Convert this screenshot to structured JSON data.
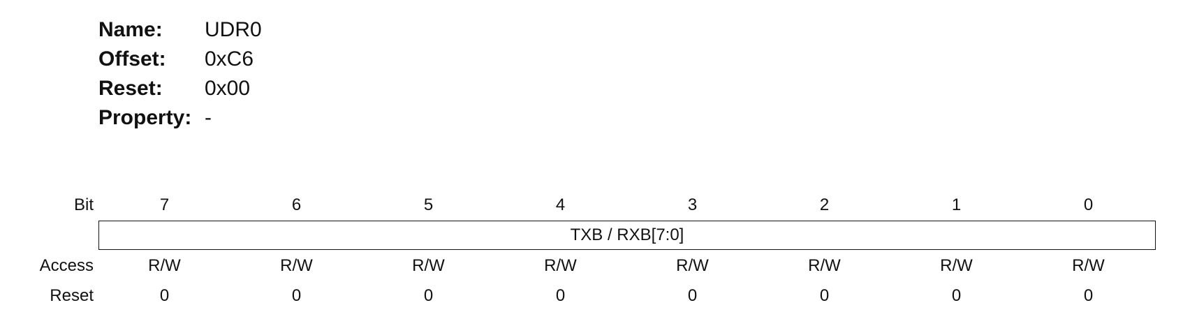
{
  "register": {
    "fields": [
      {
        "label": "Name:",
        "value": "UDR0"
      },
      {
        "label": "Offset:",
        "value": "0xC6"
      },
      {
        "label": "Reset:",
        "value": "0x00"
      },
      {
        "label": "Property:",
        "value": "-"
      }
    ]
  },
  "table": {
    "row_labels": {
      "bit": "Bit",
      "access": "Access",
      "reset": "Reset"
    },
    "bits": [
      "7",
      "6",
      "5",
      "4",
      "3",
      "2",
      "1",
      "0"
    ],
    "field_name": "TXB / RXB[7:0]",
    "access": [
      "R/W",
      "R/W",
      "R/W",
      "R/W",
      "R/W",
      "R/W",
      "R/W",
      "R/W"
    ],
    "reset": [
      "0",
      "0",
      "0",
      "0",
      "0",
      "0",
      "0",
      "0"
    ]
  }
}
